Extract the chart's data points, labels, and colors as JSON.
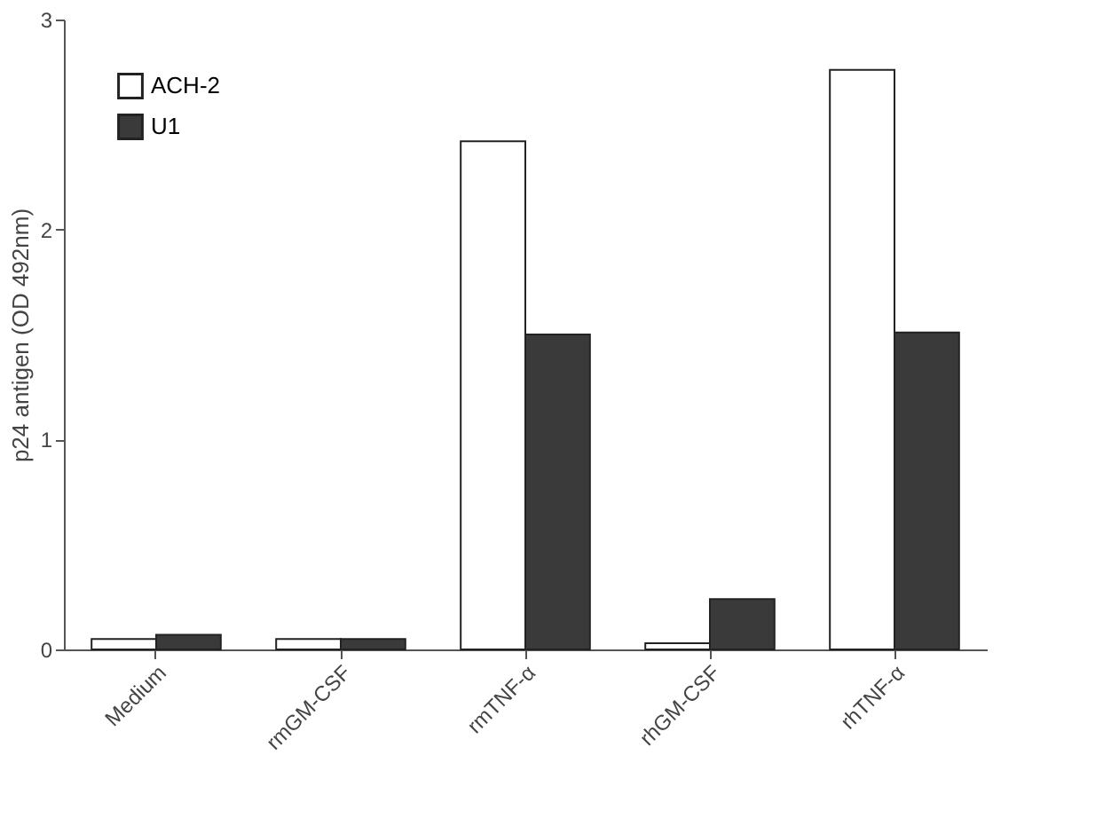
{
  "chart_data": {
    "type": "bar",
    "ylabel": "p24 antigen (OD 492nm)",
    "categories": [
      "Medium",
      "rmGM-CSF",
      "rmTNF-α",
      "rhGM-CSF",
      "rhTNF-α"
    ],
    "series": [
      {
        "name": "ACH-2",
        "color": "#ffffff",
        "values": [
          0.05,
          0.05,
          2.42,
          0.03,
          2.76
        ]
      },
      {
        "name": "U1",
        "color": "#3a3a3a",
        "values": [
          0.07,
          0.05,
          1.5,
          0.24,
          1.51
        ]
      }
    ],
    "ylim": [
      0,
      3
    ],
    "yticks": [
      0,
      1,
      2,
      3
    ],
    "grid": false,
    "legend": "top left"
  }
}
